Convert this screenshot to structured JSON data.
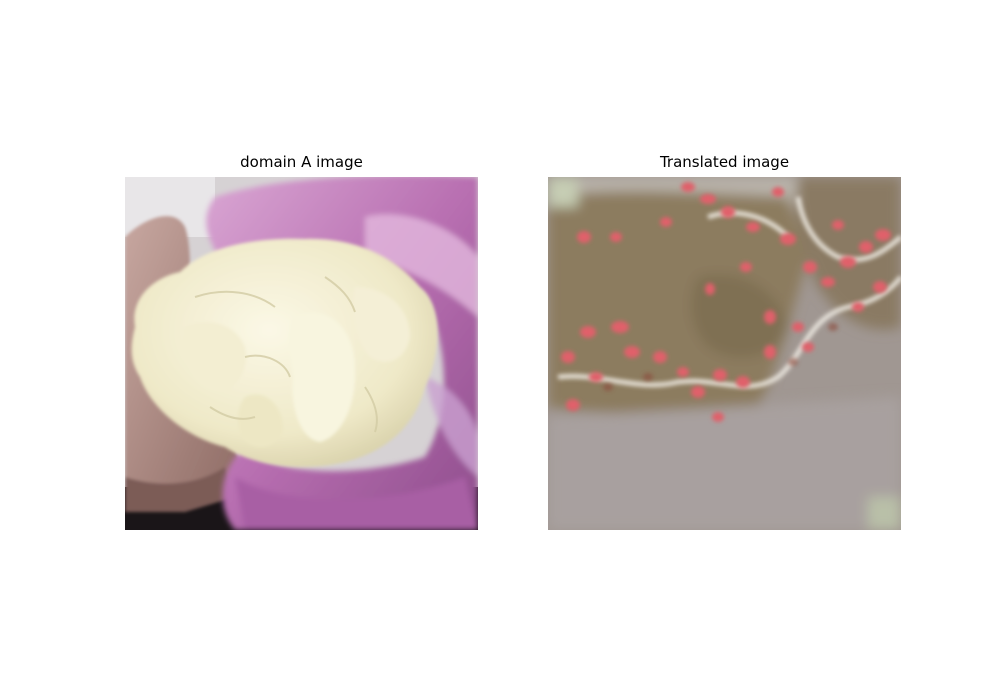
{
  "figure": {
    "panels": [
      {
        "title": "domain A image",
        "image": "input-photo-mozzarella-in-pink-bag"
      },
      {
        "title": "Translated image",
        "image": "translated-output-blurry-pink-brown-texture"
      }
    ]
  },
  "colors": {
    "background": "#ffffff",
    "plastic_bag": "#c07ab8",
    "cheese": "#f3efd4",
    "translated_base": "#9e9186",
    "translated_spots": "#e0616a"
  }
}
